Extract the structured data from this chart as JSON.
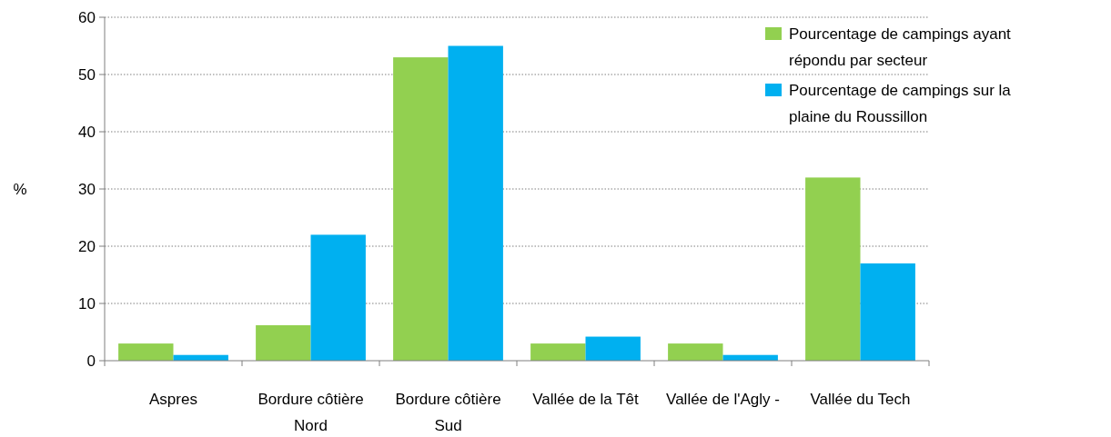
{
  "chart_data": {
    "type": "bar",
    "ylabel": "%",
    "categories": [
      "Aspres",
      "Bordure côtière Nord",
      "Bordure côtière Sud",
      "Vallée de la Têt",
      "Vallée de l'Agly -",
      "Vallée du Tech"
    ],
    "series": [
      {
        "name": "Pourcentage de campings ayant répondu par secteur",
        "color": "#92d050",
        "values": [
          3,
          6.2,
          53,
          3,
          3,
          32
        ]
      },
      {
        "name": "Pourcentage de campings sur la plaine du Roussillon",
        "color": "#00b0f0",
        "values": [
          1,
          22,
          55,
          4.2,
          1,
          17
        ]
      }
    ],
    "ylim": [
      0,
      60
    ],
    "yticks": [
      0,
      10,
      20,
      30,
      40,
      50,
      60
    ],
    "grid": "y",
    "legend": "top right"
  }
}
